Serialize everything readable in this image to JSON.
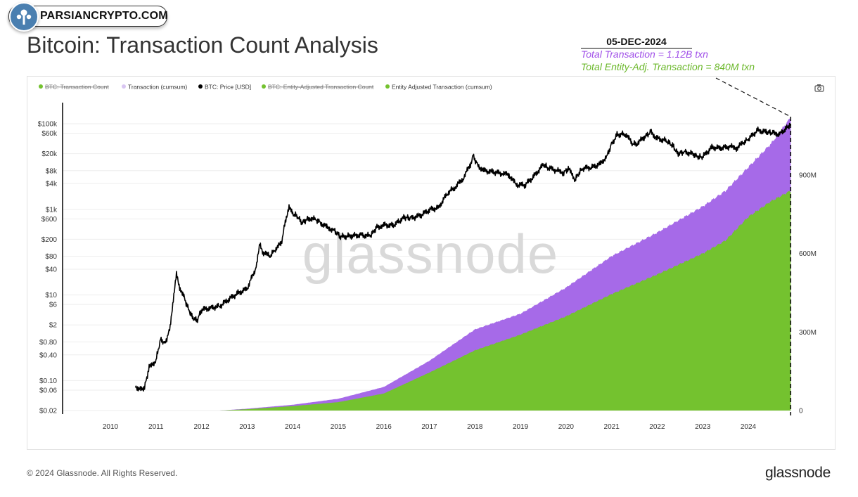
{
  "badge": {
    "text": "PARSIANCRYPTO.COM"
  },
  "page_title": "Bitcoin: Transaction Count Analysis",
  "annotation": {
    "date": "05-DEC-2024",
    "total": "Total Transaction = 1.12B txn",
    "entity": "Total Entity-Adj. Transaction = 840M txn"
  },
  "watermark": "glassnode",
  "footer": {
    "copyright": "© 2024 Glassnode. All Rights Reserved.",
    "logo": "glassnode"
  },
  "colors": {
    "purple": "#a66ae8",
    "green": "#74c22f",
    "price": "#000000",
    "purple_text": "#a050e8",
    "green_text": "#6cb82c"
  },
  "icons": {
    "camera": "camera-icon"
  },
  "chart_data": {
    "type": "area",
    "legend": [
      {
        "label": "BTC: Transaction Count",
        "color": "#74c22f",
        "strike": true
      },
      {
        "label": "Transaction (cumsum)",
        "color": "#d9c6f2",
        "strike": false
      },
      {
        "label": "BTC: Price [USD]",
        "color": "#000000",
        "strike": false
      },
      {
        "label": "BTC: Entity-Adjusted Transaction Count",
        "color": "#74c22f",
        "strike": true
      },
      {
        "label": "Entity Adjusted Transaction (cumsum)",
        "color": "#74c22f",
        "strike": false
      }
    ],
    "x_ticks": [
      "2010",
      "2011",
      "2012",
      "2013",
      "2014",
      "2015",
      "2016",
      "2017",
      "2018",
      "2019",
      "2020",
      "2021",
      "2022",
      "2023",
      "2024"
    ],
    "left_axis": {
      "scale": "log",
      "ticks": [
        {
          "label": "$100k",
          "value": 100000
        },
        {
          "label": "$60k",
          "value": 60000
        },
        {
          "label": "$20k",
          "value": 20000
        },
        {
          "label": "$8k",
          "value": 8000
        },
        {
          "label": "$4k",
          "value": 4000
        },
        {
          "label": "$1k",
          "value": 1000
        },
        {
          "label": "$600",
          "value": 600
        },
        {
          "label": "$200",
          "value": 200
        },
        {
          "label": "$80",
          "value": 80
        },
        {
          "label": "$40",
          "value": 40
        },
        {
          "label": "$10",
          "value": 10
        },
        {
          "label": "$6",
          "value": 6
        },
        {
          "label": "$2",
          "value": 2
        },
        {
          "label": "$0.80",
          "value": 0.8
        },
        {
          "label": "$0.40",
          "value": 0.4
        },
        {
          "label": "$0.10",
          "value": 0.1
        },
        {
          "label": "$0.06",
          "value": 0.06
        },
        {
          "label": "$0.02",
          "value": 0.02
        }
      ]
    },
    "right_axis": {
      "scale": "linear",
      "range": [
        0,
        1200
      ],
      "ticks": [
        {
          "label": "0",
          "value": 0
        },
        {
          "label": "300M",
          "value": 300
        },
        {
          "label": "600M",
          "value": 600
        },
        {
          "label": "900M",
          "value": 900
        }
      ]
    },
    "series": [
      {
        "name": "BTC: Price [USD]",
        "axis": "left",
        "points": [
          [
            2010.55,
            0.08
          ],
          [
            2010.62,
            0.06
          ],
          [
            2010.75,
            0.07
          ],
          [
            2010.85,
            0.2
          ],
          [
            2011.0,
            0.3
          ],
          [
            2011.1,
            0.9
          ],
          [
            2011.2,
            0.75
          ],
          [
            2011.3,
            1.5
          ],
          [
            2011.38,
            8
          ],
          [
            2011.45,
            30
          ],
          [
            2011.52,
            15
          ],
          [
            2011.6,
            10
          ],
          [
            2011.7,
            5
          ],
          [
            2011.8,
            3
          ],
          [
            2011.9,
            2.5
          ],
          [
            2012.0,
            4.5
          ],
          [
            2012.2,
            5
          ],
          [
            2012.4,
            5.5
          ],
          [
            2012.6,
            8
          ],
          [
            2012.8,
            11
          ],
          [
            2013.0,
            14
          ],
          [
            2013.2,
            45
          ],
          [
            2013.28,
            150
          ],
          [
            2013.35,
            100
          ],
          [
            2013.5,
            80
          ],
          [
            2013.6,
            110
          ],
          [
            2013.75,
            160
          ],
          [
            2013.85,
            600
          ],
          [
            2013.92,
            1100
          ],
          [
            2014.0,
            780
          ],
          [
            2014.1,
            700
          ],
          [
            2014.2,
            480
          ],
          [
            2014.35,
            620
          ],
          [
            2014.5,
            580
          ],
          [
            2014.6,
            500
          ],
          [
            2014.75,
            380
          ],
          [
            2014.9,
            330
          ],
          [
            2015.05,
            230
          ],
          [
            2015.3,
            240
          ],
          [
            2015.5,
            250
          ],
          [
            2015.7,
            240
          ],
          [
            2015.85,
            380
          ],
          [
            2016.0,
            430
          ],
          [
            2016.2,
            420
          ],
          [
            2016.45,
            650
          ],
          [
            2016.6,
            620
          ],
          [
            2016.8,
            720
          ],
          [
            2017.0,
            970
          ],
          [
            2017.2,
            1100
          ],
          [
            2017.4,
            2400
          ],
          [
            2017.6,
            3500
          ],
          [
            2017.75,
            5500
          ],
          [
            2017.9,
            11000
          ],
          [
            2017.96,
            18000
          ],
          [
            2018.05,
            11000
          ],
          [
            2018.2,
            8000
          ],
          [
            2018.4,
            7500
          ],
          [
            2018.6,
            6800
          ],
          [
            2018.75,
            6400
          ],
          [
            2018.9,
            3800
          ],
          [
            2019.1,
            3700
          ],
          [
            2019.3,
            6000
          ],
          [
            2019.5,
            11000
          ],
          [
            2019.6,
            9500
          ],
          [
            2019.8,
            8000
          ],
          [
            2019.95,
            7200
          ],
          [
            2020.05,
            8900
          ],
          [
            2020.2,
            5000
          ],
          [
            2020.35,
            9000
          ],
          [
            2020.55,
            9500
          ],
          [
            2020.75,
            11500
          ],
          [
            2020.9,
            18000
          ],
          [
            2021.0,
            33000
          ],
          [
            2021.12,
            55000
          ],
          [
            2021.3,
            58000
          ],
          [
            2021.45,
            35000
          ],
          [
            2021.55,
            33000
          ],
          [
            2021.7,
            47000
          ],
          [
            2021.86,
            64000
          ],
          [
            2022.0,
            45000
          ],
          [
            2022.2,
            40000
          ],
          [
            2022.35,
            30000
          ],
          [
            2022.45,
            20000
          ],
          [
            2022.6,
            22000
          ],
          [
            2022.8,
            19500
          ],
          [
            2022.9,
            16500
          ],
          [
            2023.0,
            17000
          ],
          [
            2023.2,
            28000
          ],
          [
            2023.4,
            27000
          ],
          [
            2023.6,
            29000
          ],
          [
            2023.75,
            27000
          ],
          [
            2023.9,
            37000
          ],
          [
            2024.0,
            43000
          ],
          [
            2024.2,
            70000
          ],
          [
            2024.4,
            64000
          ],
          [
            2024.55,
            60000
          ],
          [
            2024.7,
            58000
          ],
          [
            2024.82,
            75000
          ],
          [
            2024.93,
            100000
          ]
        ]
      },
      {
        "name": "Transaction (cumsum)",
        "axis": "right",
        "points": [
          [
            2012.4,
            0
          ],
          [
            2013.0,
            7
          ],
          [
            2014.0,
            22
          ],
          [
            2015.0,
            45
          ],
          [
            2016.0,
            90
          ],
          [
            2017.0,
            190
          ],
          [
            2018.0,
            310
          ],
          [
            2019.0,
            370
          ],
          [
            2020.0,
            470
          ],
          [
            2021.0,
            590
          ],
          [
            2022.0,
            680
          ],
          [
            2023.0,
            780
          ],
          [
            2023.5,
            840
          ],
          [
            2024.0,
            930
          ],
          [
            2024.5,
            1020
          ],
          [
            2024.93,
            1120
          ]
        ]
      },
      {
        "name": "Entity Adjusted Transaction (cumsum)",
        "axis": "right",
        "points": [
          [
            2012.4,
            0
          ],
          [
            2013.0,
            5
          ],
          [
            2014.0,
            17
          ],
          [
            2015.0,
            32
          ],
          [
            2016.0,
            65
          ],
          [
            2017.0,
            145
          ],
          [
            2018.0,
            230
          ],
          [
            2019.0,
            290
          ],
          [
            2020.0,
            360
          ],
          [
            2021.0,
            445
          ],
          [
            2022.0,
            520
          ],
          [
            2023.0,
            600
          ],
          [
            2023.5,
            650
          ],
          [
            2024.0,
            740
          ],
          [
            2024.5,
            800
          ],
          [
            2024.93,
            840
          ]
        ]
      }
    ],
    "marker": {
      "date": "05-DEC-2024",
      "x": 2024.93
    }
  }
}
